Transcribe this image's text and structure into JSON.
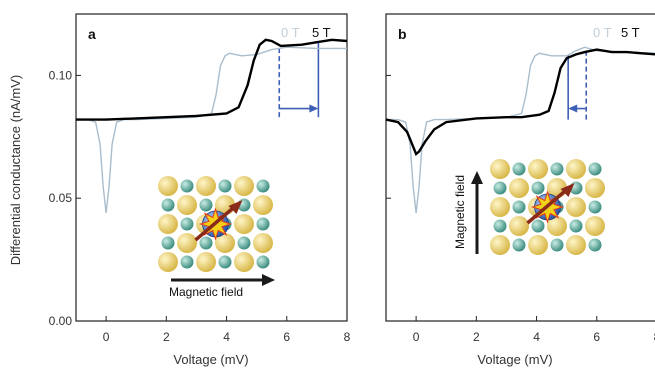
{
  "figure": {
    "ylabel": "Differential conductance (nA/mV)"
  },
  "colors": {
    "field_on": "#000000",
    "field_off": "#a9bdcc",
    "marker": "#3d5fb5",
    "arrow": "#1a1a1a",
    "green_atom": "#5aa79a",
    "yellow_atom": "#e9cf63",
    "center_atom": "#3b72c4",
    "spin_arrow": "#8a2b1a",
    "burst": "#f5d21a"
  },
  "chart_data": [
    {
      "type": "line",
      "panel_label": "a",
      "xlabel": "Voltage (mV)",
      "ylabel": "Differential conductance (nA/mV)",
      "xlim": [
        -1,
        8
      ],
      "ylim": [
        0,
        0.125
      ],
      "xticks": [
        0,
        2,
        4,
        6,
        8
      ],
      "yticks": [
        0.0,
        0.05,
        0.1
      ],
      "ytick_labels": [
        "0.00",
        "0.05",
        "0.10"
      ],
      "grid": false,
      "legend": {
        "position": "top-right",
        "entries": [
          "0 T",
          "5 T"
        ]
      },
      "series": [
        {
          "name": "0 T",
          "x": [
            -1.0,
            -0.6,
            -0.35,
            -0.2,
            -0.1,
            0.0,
            0.1,
            0.2,
            0.35,
            0.6,
            1.0,
            2.0,
            3.0,
            3.5,
            3.65,
            3.8,
            3.95,
            4.1,
            4.5,
            5.0,
            5.5,
            6.0,
            7.0,
            8.0
          ],
          "y": [
            0.082,
            0.082,
            0.081,
            0.072,
            0.055,
            0.044,
            0.055,
            0.072,
            0.081,
            0.082,
            0.082,
            0.0825,
            0.083,
            0.0845,
            0.092,
            0.104,
            0.108,
            0.109,
            0.108,
            0.1085,
            0.1105,
            0.1115,
            0.111,
            0.111
          ]
        },
        {
          "name": "5 T",
          "x": [
            -1.0,
            0.0,
            1.0,
            2.0,
            3.0,
            4.0,
            4.4,
            4.7,
            4.9,
            5.1,
            5.3,
            5.5,
            5.8,
            6.5,
            7.0,
            7.5,
            8.0
          ],
          "y": [
            0.082,
            0.082,
            0.0825,
            0.083,
            0.0835,
            0.0845,
            0.087,
            0.096,
            0.106,
            0.1125,
            0.1145,
            0.114,
            0.112,
            0.1125,
            0.1135,
            0.1145,
            0.114
          ]
        }
      ],
      "markers": [
        {
          "x": 5.75,
          "style": "dashed",
          "ymin": 0.083,
          "ymax": 0.1125
        },
        {
          "x": 7.05,
          "style": "solid",
          "ymin": 0.083,
          "ymax": 0.1135
        }
      ],
      "shift_arrow": {
        "from": 5.75,
        "to": 7.05,
        "y": 0.0865
      },
      "inset": {
        "field_direction": "horizontal",
        "label": "Magnetic field"
      }
    },
    {
      "type": "line",
      "panel_label": "b",
      "xlabel": "Voltage (mV)",
      "xlim": [
        -1,
        8
      ],
      "ylim": [
        0,
        0.125
      ],
      "xticks": [
        0,
        2,
        4,
        6,
        8
      ],
      "grid": false,
      "legend": {
        "position": "top-right",
        "entries": [
          "0 T",
          "5 T"
        ]
      },
      "series": [
        {
          "name": "0 T",
          "x": [
            -1.0,
            -0.6,
            -0.35,
            -0.2,
            -0.1,
            0.0,
            0.1,
            0.2,
            0.35,
            0.6,
            1.0,
            2.0,
            3.0,
            3.5,
            3.65,
            3.8,
            3.95,
            4.1,
            4.5,
            5.0,
            5.3,
            5.6,
            6.0,
            7.0,
            8.0
          ],
          "y": [
            0.082,
            0.082,
            0.081,
            0.072,
            0.055,
            0.044,
            0.055,
            0.072,
            0.081,
            0.082,
            0.082,
            0.0825,
            0.083,
            0.0845,
            0.092,
            0.104,
            0.108,
            0.109,
            0.108,
            0.108,
            0.11,
            0.1115,
            0.11,
            0.1095,
            0.109
          ]
        },
        {
          "name": "5 T",
          "x": [
            -1.0,
            -0.6,
            -0.3,
            -0.1,
            0.0,
            0.1,
            0.3,
            0.6,
            1.0,
            2.0,
            3.0,
            3.5,
            3.8,
            4.1,
            4.4,
            4.6,
            4.8,
            5.0,
            5.3,
            5.6,
            6.0,
            6.5,
            7.0,
            7.5,
            8.0
          ],
          "y": [
            0.082,
            0.081,
            0.077,
            0.071,
            0.068,
            0.069,
            0.073,
            0.078,
            0.081,
            0.0825,
            0.083,
            0.083,
            0.0835,
            0.084,
            0.0855,
            0.093,
            0.103,
            0.107,
            0.1085,
            0.1095,
            0.1105,
            0.1095,
            0.1095,
            0.109,
            0.1085
          ]
        }
      ],
      "markers": [
        {
          "x": 5.05,
          "style": "solid",
          "ymin": 0.082,
          "ymax": 0.1085
        },
        {
          "x": 5.65,
          "style": "dashed",
          "ymin": 0.082,
          "ymax": 0.1105
        }
      ],
      "shift_arrow": {
        "from": 5.65,
        "to": 5.05,
        "y": 0.0865
      },
      "inset": {
        "field_direction": "vertical",
        "label": "Magnetic field"
      }
    }
  ]
}
